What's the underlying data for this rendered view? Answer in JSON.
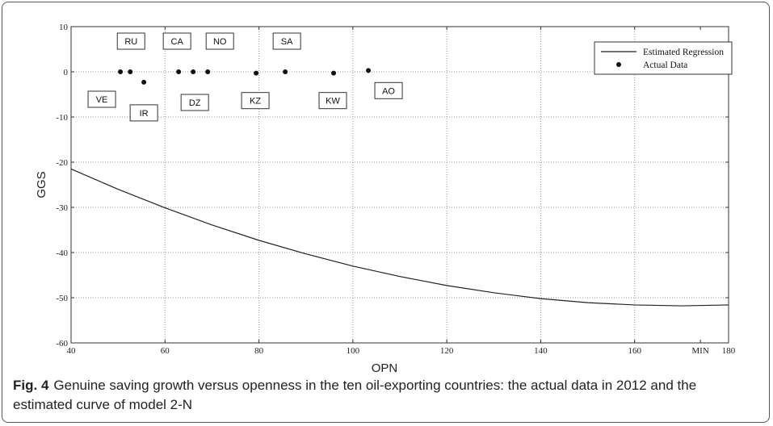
{
  "chart_data": {
    "type": "line",
    "x_label": "OPN",
    "y_label": "GGS",
    "xlim": [
      40,
      180
    ],
    "ylim": [
      -60,
      10
    ],
    "xticks": [
      40,
      60,
      80,
      100,
      120,
      140,
      160,
      {
        "value": 174,
        "label": "MIN"
      },
      180
    ],
    "yticks": [
      10,
      0,
      -10,
      -20,
      -30,
      -40,
      -50,
      -60
    ],
    "grid": true,
    "legend": "upper right",
    "series": [
      {
        "name": "Estimated Regression",
        "type": "line",
        "color": "#222222",
        "x": [
          40,
          50,
          60,
          70,
          80,
          90,
          100,
          110,
          120,
          130,
          140,
          150,
          160,
          170,
          180
        ],
        "values": [
          -21.5,
          -26.0,
          -30.1,
          -33.9,
          -37.3,
          -40.3,
          -43.0,
          -45.3,
          -47.3,
          -48.9,
          -50.2,
          -51.1,
          -51.6,
          -51.8,
          -51.6
        ]
      },
      {
        "name": "Actual Data",
        "type": "scatter",
        "color": "#111111",
        "labels": [
          "VE",
          "RU",
          "IR",
          "CA",
          "DZ",
          "NO",
          "KZ",
          "SA",
          "KW",
          "AO"
        ],
        "x": [
          50.5,
          52.6,
          55.5,
          62.9,
          66,
          69.1,
          79.4,
          85.6,
          95.9,
          103.3
        ],
        "values": [
          0,
          0,
          -2.3,
          0,
          0,
          0,
          -0.3,
          0,
          -0.3,
          0.3
        ]
      }
    ]
  },
  "caption": {
    "label": "Fig. 4",
    "text": "Genuine saving growth versus openness in the ten oil-exporting countries: the actual data in 2012 and the estimated curve of model 2-N"
  }
}
